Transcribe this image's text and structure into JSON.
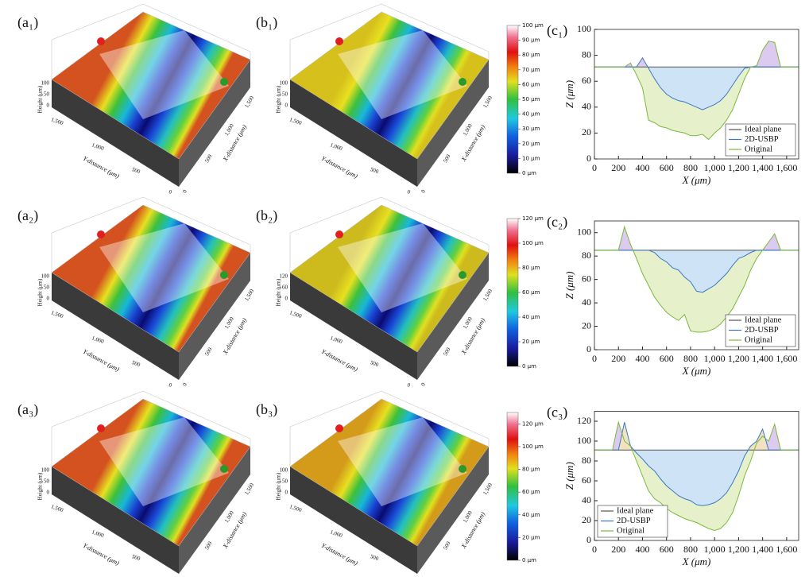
{
  "chart_data": [
    {
      "type": "area",
      "panel_label": "(c₁)",
      "xlabel": "X (μm)",
      "ylabel": "Z (μm)",
      "legend": "lower right",
      "xlim": [
        0,
        1700
      ],
      "ylim": [
        0,
        100
      ],
      "xticks": [
        0,
        200,
        400,
        600,
        800,
        {
          "value": 1000,
          "label": "1,000"
        },
        {
          "value": 1200,
          "label": "1,200"
        },
        {
          "value": 1400,
          "label": "1,400"
        },
        {
          "value": 1600,
          "label": "1,600"
        }
      ],
      "yticks": [
        0,
        20,
        40,
        60,
        80,
        100
      ],
      "x": [
        0,
        50,
        100,
        150,
        200,
        250,
        300,
        350,
        400,
        450,
        500,
        550,
        600,
        650,
        700,
        750,
        800,
        850,
        900,
        950,
        1000,
        1050,
        1100,
        1150,
        1200,
        1250,
        1300,
        1350,
        1400,
        1450,
        1500,
        1550,
        1600,
        1650,
        1700
      ],
      "series": [
        {
          "name": "Ideal plane",
          "color": "#555555",
          "values": [
            71,
            71,
            71,
            71,
            71,
            71,
            71,
            71,
            71,
            71,
            71,
            71,
            71,
            71,
            71,
            71,
            71,
            71,
            71,
            71,
            71,
            71,
            71,
            71,
            71,
            71,
            71,
            71,
            71,
            71,
            71,
            71,
            71,
            71,
            71
          ]
        },
        {
          "name": "2D-USBP",
          "color": "#3a78c9",
          "fill": "#cfe3f7",
          "fill_above": "#dccaf0",
          "values": [
            71,
            71,
            71,
            71,
            71,
            71,
            71,
            71,
            78,
            70,
            62,
            55,
            50,
            47,
            45,
            44,
            42,
            40,
            38,
            40,
            42,
            45,
            50,
            57,
            64,
            70,
            71,
            71,
            71,
            71,
            71,
            71,
            71,
            71,
            71
          ]
        },
        {
          "name": "Original",
          "color": "#7cb83a",
          "fill": "#e6f1cc",
          "fill_above": "#dccaf0",
          "values": [
            71,
            71,
            71,
            71,
            71,
            71,
            74,
            65,
            55,
            30,
            28,
            25,
            24,
            22,
            21,
            20,
            18,
            18,
            19,
            15,
            20,
            24,
            30,
            38,
            50,
            62,
            71,
            72,
            84,
            91,
            90,
            71,
            71,
            71,
            71
          ]
        }
      ]
    },
    {
      "type": "area",
      "panel_label": "(c₂)",
      "xlabel": "X (μm)",
      "ylabel": "Z (μm)",
      "legend": "lower right",
      "xlim": [
        0,
        1700
      ],
      "ylim": [
        0,
        110
      ],
      "xticks": [
        0,
        200,
        400,
        600,
        800,
        {
          "value": 1000,
          "label": "1,000"
        },
        {
          "value": 1200,
          "label": "1,200"
        },
        {
          "value": 1400,
          "label": "1,400"
        },
        {
          "value": 1600,
          "label": "1,600"
        }
      ],
      "yticks": [
        0,
        20,
        40,
        60,
        80,
        100
      ],
      "x": [
        0,
        50,
        100,
        150,
        200,
        250,
        300,
        350,
        400,
        450,
        500,
        550,
        600,
        650,
        700,
        750,
        800,
        850,
        900,
        950,
        1000,
        1050,
        1100,
        1150,
        1200,
        1250,
        1300,
        1350,
        1400,
        1450,
        1500,
        1550,
        1600,
        1650,
        1700
      ],
      "series": [
        {
          "name": "Ideal plane",
          "color": "#555555",
          "values": [
            85,
            85,
            85,
            85,
            85,
            85,
            85,
            85,
            85,
            85,
            85,
            85,
            85,
            85,
            85,
            85,
            85,
            85,
            85,
            85,
            85,
            85,
            85,
            85,
            85,
            85,
            85,
            85,
            85,
            85,
            85,
            85,
            85,
            85,
            85
          ]
        },
        {
          "name": "2D-USBP",
          "color": "#3a78c9",
          "fill": "#cfe3f7",
          "fill_above": "#dccaf0",
          "values": [
            85,
            85,
            85,
            85,
            85,
            85,
            85,
            85,
            85,
            85,
            83,
            78,
            75,
            70,
            68,
            62,
            58,
            50,
            49,
            52,
            55,
            60,
            65,
            72,
            78,
            80,
            83,
            85,
            85,
            85,
            85,
            85,
            85,
            85,
            85
          ]
        },
        {
          "name": "Original",
          "color": "#7cb83a",
          "fill": "#e6f1cc",
          "fill_above": "#dccaf0",
          "values": [
            85,
            85,
            85,
            85,
            85,
            105,
            90,
            78,
            65,
            55,
            45,
            38,
            32,
            28,
            25,
            30,
            16,
            15,
            15,
            16,
            18,
            22,
            28,
            35,
            45,
            55,
            68,
            78,
            85,
            92,
            99,
            85,
            85,
            85,
            85
          ]
        }
      ]
    },
    {
      "type": "area",
      "panel_label": "(c₃)",
      "xlabel": "X (μm)",
      "ylabel": "Z (μm)",
      "legend": "lower left",
      "xlim": [
        0,
        1700
      ],
      "ylim": [
        0,
        130
      ],
      "xticks": [
        0,
        200,
        400,
        600,
        800,
        {
          "value": 1000,
          "label": "1,000"
        },
        {
          "value": 1200,
          "label": "1,200"
        },
        {
          "value": 1400,
          "label": "1,400"
        },
        {
          "value": 1600,
          "label": "1,600"
        }
      ],
      "yticks": [
        0,
        20,
        40,
        60,
        80,
        100,
        120
      ],
      "x": [
        0,
        50,
        100,
        150,
        200,
        250,
        300,
        350,
        400,
        450,
        500,
        550,
        600,
        650,
        700,
        750,
        800,
        850,
        900,
        950,
        1000,
        1050,
        1100,
        1150,
        1200,
        1250,
        1300,
        1350,
        1400,
        1450,
        1500,
        1550,
        1600,
        1650,
        1700
      ],
      "series": [
        {
          "name": "Ideal plane",
          "color": "#555555",
          "values": [
            91,
            91,
            91,
            91,
            91,
            91,
            91,
            91,
            91,
            91,
            91,
            91,
            91,
            91,
            91,
            91,
            91,
            91,
            91,
            91,
            91,
            91,
            91,
            91,
            91,
            91,
            91,
            91,
            91,
            91,
            91,
            91,
            91,
            91,
            91
          ]
        },
        {
          "name": "2D-USBP",
          "color": "#3a78c9",
          "fill": "#cfe3f7",
          "fill_above": "#f1e2c0",
          "values": [
            91,
            91,
            91,
            91,
            91,
            119,
            95,
            88,
            82,
            75,
            70,
            62,
            55,
            50,
            45,
            42,
            40,
            36,
            35,
            36,
            38,
            42,
            48,
            58,
            70,
            85,
            95,
            100,
            112,
            91,
            91,
            91,
            91,
            91,
            91
          ]
        },
        {
          "name": "Original",
          "color": "#7cb83a",
          "fill": "#e6f1cc",
          "fill_above": "#dccaf0",
          "values": [
            91,
            91,
            91,
            91,
            119,
            100,
            95,
            80,
            65,
            50,
            42,
            38,
            32,
            28,
            25,
            22,
            20,
            18,
            15,
            12,
            10,
            12,
            18,
            28,
            45,
            65,
            80,
            98,
            105,
            100,
            117,
            91,
            91,
            91,
            91
          ]
        }
      ]
    }
  ],
  "surfaces": [
    {
      "panel_label": "(a₁)",
      "edge_color": "#d4521f",
      "z_label": "Height (μm)",
      "y_label": "Y-distance (μm)",
      "x_label": "X-distance (μm)",
      "z_ticks": [
        "100",
        "50",
        "0"
      ],
      "y_ticks": [
        "1,500",
        "1,000",
        "500",
        "0"
      ],
      "x_ticks": [
        "0",
        "500",
        "1,000",
        "1,500"
      ]
    },
    {
      "panel_label": "(b₁)",
      "edge_color": "#d6c01c",
      "z_label": "Height (μm)",
      "y_label": "Y-distance (μm)",
      "x_label": "X-distance (μm)",
      "z_ticks": [
        "100",
        "50",
        "0"
      ],
      "y_ticks": [
        "1,500",
        "1,000",
        "500",
        "0"
      ],
      "x_ticks": [
        "0",
        "500",
        "1,000",
        "1,500"
      ]
    },
    {
      "panel_label": "(a₂)",
      "edge_color": "#d4521f",
      "z_label": "Height (μm)",
      "y_label": "Y-distance (μm)",
      "x_label": "X-distance (μm)",
      "z_ticks": [
        "100",
        "50",
        "0"
      ],
      "y_ticks": [
        "1,500",
        "1,000",
        "500",
        "0"
      ],
      "x_ticks": [
        "0",
        "500",
        "1,000",
        "1,500"
      ]
    },
    {
      "panel_label": "(b₂)",
      "edge_color": "#cdbb1e",
      "z_label": "Height (μm)",
      "y_label": "Y-distance (μm)",
      "x_label": "X-distance (μm)",
      "z_ticks": [
        "120",
        "60",
        "0"
      ],
      "y_ticks": [
        "1,500",
        "1,000",
        "500",
        "0"
      ],
      "x_ticks": [
        "0",
        "500",
        "1,000",
        "1,500"
      ]
    },
    {
      "panel_label": "(a₃)",
      "edge_color": "#d4521f",
      "z_label": "Height (μm)",
      "y_label": "Y-distance (μm)",
      "x_label": "X-distance (μm)",
      "z_ticks": [
        "100",
        "50",
        "0"
      ],
      "y_ticks": [
        "1,500",
        "1,000",
        "500",
        "0"
      ],
      "x_ticks": [
        "0",
        "500",
        "1,000",
        "1,500"
      ]
    },
    {
      "panel_label": "(b₃)",
      "edge_color": "#d49a1a",
      "z_label": "Height (μm)",
      "y_label": "Y-distance (μm)",
      "x_label": "X-distance (μm)",
      "z_ticks": [
        "100",
        "50",
        "0"
      ],
      "y_ticks": [
        "1,500",
        "1,000",
        "500",
        "0"
      ],
      "x_ticks": [
        "0",
        "500",
        "1,000",
        "1,500"
      ]
    }
  ],
  "colorbars": [
    {
      "ylim": [
        0,
        100
      ],
      "yticks": [
        {
          "value": 0,
          "label": "0 μm"
        },
        {
          "value": 10,
          "label": "10 μm"
        },
        {
          "value": 20,
          "label": "20 μm"
        },
        {
          "value": 30,
          "label": "30 μm"
        },
        {
          "value": 40,
          "label": "40 μm"
        },
        {
          "value": 50,
          "label": "50 μm"
        },
        {
          "value": 60,
          "label": "60 μm"
        },
        {
          "value": 70,
          "label": "70 μm"
        },
        {
          "value": 80,
          "label": "80 μm"
        },
        {
          "value": 90,
          "label": "90 μm"
        },
        {
          "value": 100,
          "label": "100 μm"
        }
      ]
    },
    {
      "ylim": [
        0,
        120
      ],
      "yticks": [
        {
          "value": 0,
          "label": "0 μm"
        },
        {
          "value": 20,
          "label": "20 μm"
        },
        {
          "value": 40,
          "label": "40 μm"
        },
        {
          "value": 60,
          "label": "60 μm"
        },
        {
          "value": 80,
          "label": "80 μm"
        },
        {
          "value": 100,
          "label": "100 μm"
        },
        {
          "value": 120,
          "label": "120 μm"
        }
      ]
    },
    {
      "ylim": [
        0,
        130
      ],
      "yticks": [
        {
          "value": 0,
          "label": "0 μm"
        },
        {
          "value": 20,
          "label": "20 μm"
        },
        {
          "value": 40,
          "label": "40 μm"
        },
        {
          "value": 60,
          "label": "60 μm"
        },
        {
          "value": 80,
          "label": "80 μm"
        },
        {
          "value": 100,
          "label": "100 μm"
        },
        {
          "value": 120,
          "label": "120 μm"
        }
      ]
    }
  ]
}
